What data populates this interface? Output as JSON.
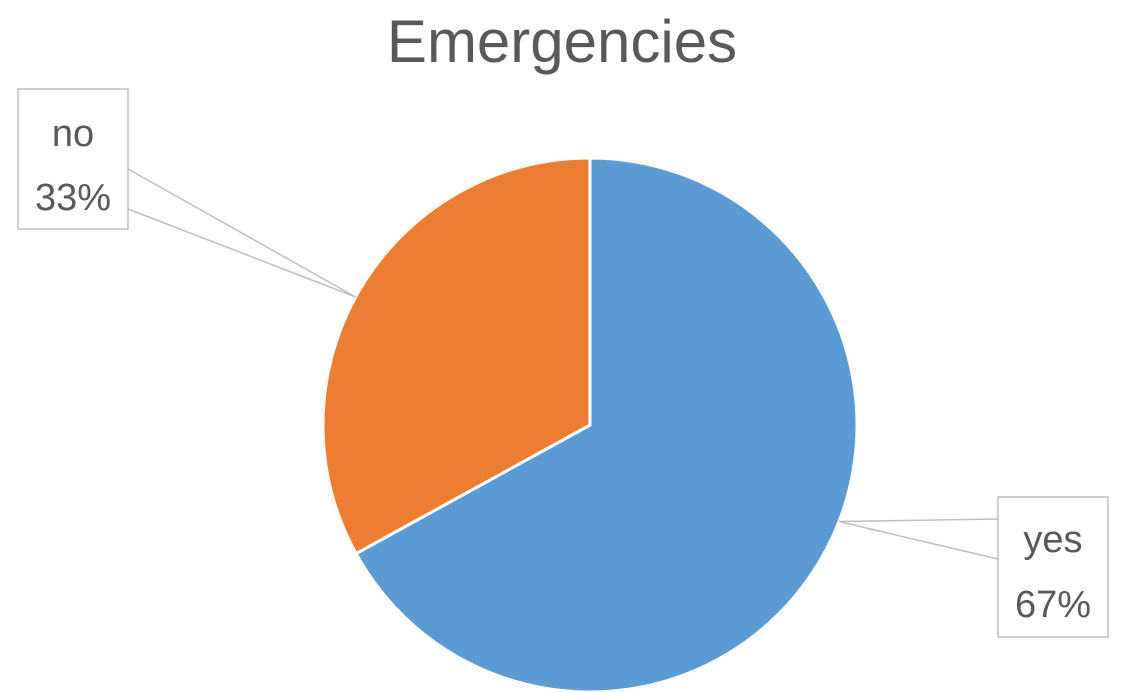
{
  "chart_data": {
    "type": "pie",
    "title": "Emergencies",
    "categories": [
      "yes",
      "no"
    ],
    "values": [
      67,
      33
    ],
    "units": "%",
    "colors": [
      "#5B9BD5",
      "#ED7D31"
    ],
    "data_labels": [
      {
        "category": "yes",
        "percent": "67%"
      },
      {
        "category": "no",
        "percent": "33%"
      }
    ],
    "legend": "none"
  }
}
